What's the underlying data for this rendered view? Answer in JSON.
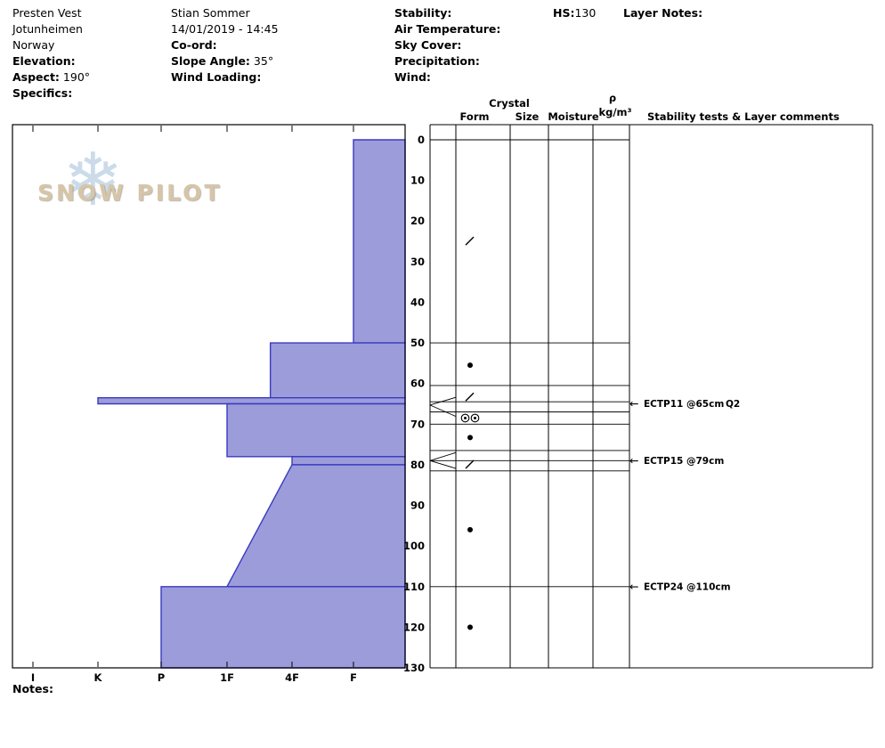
{
  "header": {
    "site": "Presten Vest",
    "region": "Jotunheimen",
    "country": "Norway",
    "elevation_label": "Elevation:",
    "elevation_value": "",
    "aspect_label": "Aspect:",
    "aspect_value": "190°",
    "specifics_label": "Specifics:",
    "observer": "Stian Sommer",
    "datetime": "14/01/2019 - 14:45",
    "coord_label": "Co-ord:",
    "coord_value": "",
    "slope_angle_label": "Slope Angle:",
    "slope_angle_value": "35°",
    "wind_loading_label": "Wind Loading:",
    "wind_loading_value": "",
    "stability_label": "Stability:",
    "air_temperature_label": "Air Temperature:",
    "sky_cover_label": "Sky Cover:",
    "precipitation_label": "Precipitation:",
    "wind_label": "Wind:",
    "hs_label": "HS:",
    "hs_value": "130",
    "layer_notes_label": "Layer Notes:"
  },
  "watermark": {
    "text": "SNOW PILOT",
    "snowflake_icon": "❄"
  },
  "panel_headers": {
    "crystal": "Crystal",
    "form": "Form",
    "size": "Size",
    "moisture": "Moisture",
    "density_symbol": "ρ",
    "density_unit": "kg/m³",
    "comments": "Stability tests & Layer comments"
  },
  "notes_label": "Notes:",
  "colors": {
    "layer_fill": "#9c9cdb",
    "layer_stroke": "#3a3ac0",
    "snowflake": "#c3d5e6",
    "watermark_text": "#d6c5a8",
    "line": "#000000"
  },
  "chart_data": {
    "type": "bar",
    "subtype": "snow-hardness-profile",
    "title": "",
    "depth_unit": "cm",
    "depth_range": [
      0,
      130
    ],
    "depth_ticks": [
      0,
      10,
      20,
      30,
      40,
      50,
      60,
      70,
      80,
      90,
      100,
      110,
      120,
      130
    ],
    "hardness_categories": [
      "I",
      "K",
      "P",
      "1F",
      "4F",
      "F"
    ],
    "total_height_cm": 130,
    "layers": [
      {
        "top_cm": 0,
        "bottom_cm": 50,
        "hardness": "F"
      },
      {
        "top_cm": 50,
        "bottom_cm": 63.5,
        "hardness": "4F+"
      },
      {
        "top_cm": 63.5,
        "bottom_cm": 65,
        "hardness": "K"
      },
      {
        "top_cm": 65,
        "bottom_cm": 78,
        "hardness": "1F"
      },
      {
        "top_cm": 78,
        "bottom_cm": 80,
        "hardness": "4F"
      },
      {
        "top_cm": 80,
        "bottom_cm": 110,
        "hardness": "4F",
        "hardness_bottom": "1F"
      },
      {
        "top_cm": 110,
        "bottom_cm": 130,
        "hardness": "P"
      }
    ],
    "grain_symbols": [
      {
        "depth_cm": 24.8,
        "type": "slash",
        "glyph": "/"
      },
      {
        "depth_cm": 55.5,
        "type": "dot",
        "glyph": "•"
      },
      {
        "depth_cm": 63.2,
        "type": "slash",
        "glyph": "/"
      },
      {
        "depth_cm": 68.5,
        "type": "double-circle",
        "glyph": "◎◎"
      },
      {
        "depth_cm": 73.3,
        "type": "dot",
        "glyph": "•"
      },
      {
        "depth_cm": 79.8,
        "type": "slash",
        "glyph": "/"
      },
      {
        "depth_cm": 96,
        "type": "dot",
        "glyph": "•"
      },
      {
        "depth_cm": 120,
        "type": "dot",
        "glyph": "•"
      }
    ],
    "row_lines_cm": [
      0,
      50,
      60.5,
      64.5,
      67,
      70,
      76.5,
      79,
      81.5,
      110,
      130
    ],
    "thin_layer_markers": [
      {
        "point_cm": 65.3,
        "top_cm": 63.4,
        "bottom_cm": 68.1
      },
      {
        "point_cm": 79.0,
        "top_cm": 77.0,
        "bottom_cm": 80.9
      }
    ],
    "test_arrow_icon": "←",
    "tests": [
      {
        "depth_cm": 65,
        "label": "ECTP11 @65cm",
        "shear_quality": "Q2"
      },
      {
        "depth_cm": 79,
        "label": "ECTP15 @79cm",
        "shear_quality": ""
      },
      {
        "depth_cm": 110,
        "label": "ECTP24 @110cm",
        "shear_quality": ""
      }
    ]
  }
}
